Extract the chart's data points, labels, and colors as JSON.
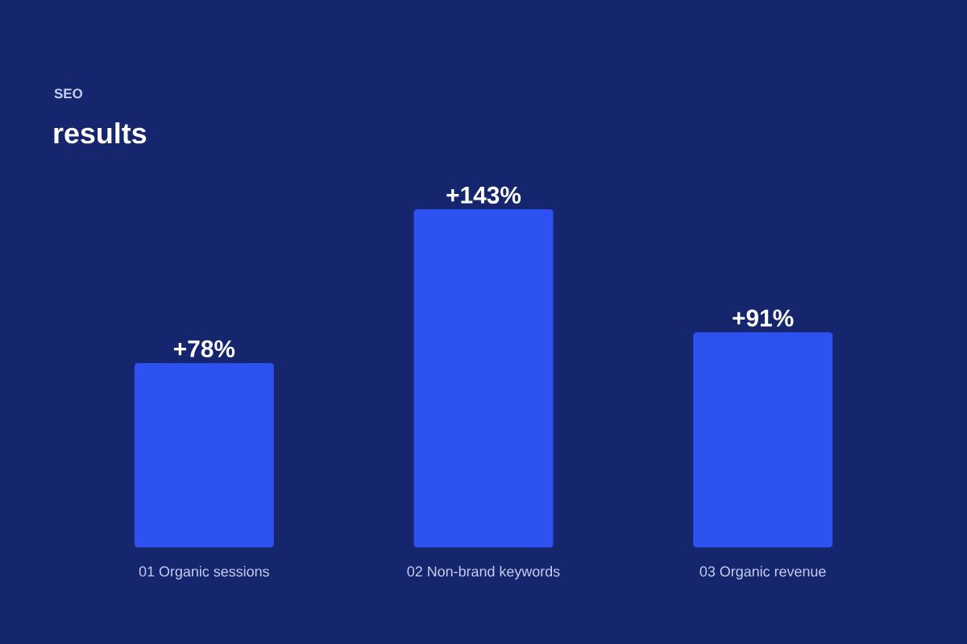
{
  "chart_data": {
    "type": "bar",
    "subtitle": "SEO",
    "title": "results",
    "categories": [
      "01 Organic sessions",
      "02 Non-brand keywords",
      "03 Organic revenue"
    ],
    "values": [
      78,
      143,
      91
    ],
    "value_labels": [
      "+78%",
      "+143%",
      "+91%"
    ],
    "color": "#2d52ef"
  }
}
